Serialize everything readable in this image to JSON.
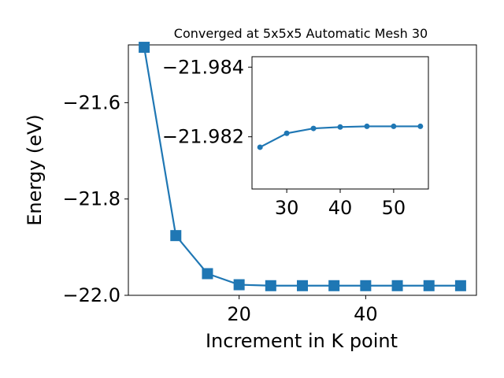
{
  "chart_data": [
    {
      "type": "line",
      "title": "Converged at 5x5x5 Automatic Mesh 30",
      "xlabel": "Increment in K point",
      "ylabel": "Energy (eV)",
      "xlim": [
        2.5,
        57.5
      ],
      "ylim": [
        -22.0,
        -21.48
      ],
      "xticks": [
        20,
        40
      ],
      "yticks": [
        -22.0,
        -21.8,
        -21.6
      ],
      "xtick_labels": [
        "20",
        "40"
      ],
      "ytick_labels": [
        "−22.0",
        "−21.8",
        "−21.6"
      ],
      "marker": "square",
      "color": "#1f77b4",
      "grid": false,
      "x": [
        5,
        10,
        15,
        20,
        25,
        30,
        35,
        40,
        45,
        50,
        55
      ],
      "y": [
        -21.485,
        -21.876,
        -21.955,
        -21.978,
        -21.98,
        -21.98,
        -21.98,
        -21.98,
        -21.98,
        -21.98,
        -21.98
      ]
    },
    {
      "type": "line",
      "title": "",
      "xlabel": "",
      "ylabel": "",
      "xlim": [
        23.5,
        56.5
      ],
      "ylim": [
        -21.9805,
        -21.9843
      ],
      "xticks": [
        30,
        40,
        50
      ],
      "yticks": [
        -21.984,
        -21.982
      ],
      "xtick_labels": [
        "30",
        "40",
        "50"
      ],
      "ytick_labels": [
        "−21.984",
        "−21.982"
      ],
      "marker": "circle",
      "color": "#1f77b4",
      "grid": false,
      "x": [
        25,
        30,
        35,
        40,
        45,
        50,
        55
      ],
      "y": [
        -21.9817,
        -21.9821,
        -21.98224,
        -21.98228,
        -21.9823,
        -21.9823,
        -21.9823
      ]
    }
  ]
}
